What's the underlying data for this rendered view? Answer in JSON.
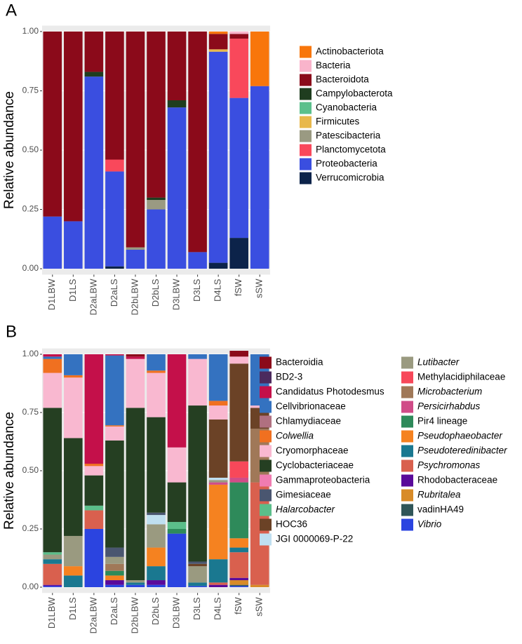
{
  "chart_data": [
    {
      "type": "stacked_bar",
      "panel_label": "A",
      "y_label": "Relative abundance",
      "categories": [
        "D1LBW",
        "D1LS",
        "D2aLBW",
        "D2aLS",
        "D2bLBW",
        "D2bLS",
        "D3LBW",
        "D3LS",
        "D4LS",
        "fSW",
        "sSW"
      ],
      "ylim": [
        -0.025,
        1.025
      ],
      "yticks": [
        {
          "value": 0,
          "label": "0.00"
        },
        {
          "value": 0.25,
          "label": "0.25"
        },
        {
          "value": 0.5,
          "label": "0.50"
        },
        {
          "value": 0.75,
          "label": "0.75"
        },
        {
          "value": 1,
          "label": "1.00"
        }
      ],
      "grid": true,
      "series": [
        {
          "name": "Actinobacteriota",
          "color": "#f8760b",
          "values": [
            0,
            0,
            0,
            0,
            0,
            0,
            0,
            0,
            0.01,
            0,
            0.23
          ]
        },
        {
          "name": "Bacteria",
          "color": "#f9b4cb",
          "values": [
            0,
            0,
            0,
            0,
            0,
            0,
            0,
            0,
            0,
            0.01,
            0
          ]
        },
        {
          "name": "Bacteroidota",
          "color": "#8b0a1a",
          "values": [
            0.78,
            0.8,
            0.17,
            0.54,
            0.91,
            0.7,
            0.29,
            0.93,
            0.065,
            0.02,
            0
          ]
        },
        {
          "name": "Campylobacterota",
          "color": "#1f3d1f",
          "values": [
            0,
            0,
            0.02,
            0,
            0,
            0.01,
            0.03,
            0,
            0,
            0,
            0
          ]
        },
        {
          "name": "Cyanobacteria",
          "color": "#5bc08c",
          "values": [
            0,
            0,
            0,
            0,
            0,
            0,
            0,
            0,
            0,
            0,
            0
          ]
        },
        {
          "name": "Firmicutes",
          "color": "#e8b84a",
          "values": [
            0,
            0,
            0,
            0,
            0,
            0,
            0,
            0,
            0.01,
            0,
            0
          ]
        },
        {
          "name": "Patescibacteria",
          "color": "#9a9a82",
          "values": [
            0,
            0,
            0,
            0,
            0.01,
            0.04,
            0,
            0,
            0,
            0,
            0
          ]
        },
        {
          "name": "Planctomycetota",
          "color": "#f9485b",
          "values": [
            0,
            0,
            0,
            0.05,
            0,
            0,
            0,
            0,
            0,
            0.25,
            0
          ]
        },
        {
          "name": "Proteobacteria",
          "color": "#3a4ee0",
          "values": [
            0.22,
            0.2,
            0.81,
            0.4,
            0.08,
            0.25,
            0.68,
            0.07,
            0.89,
            0.59,
            0.77
          ]
        },
        {
          "name": "Verrucomicrobia",
          "color": "#0c234a",
          "values": [
            0,
            0,
            0,
            0.01,
            0,
            0,
            0,
            0,
            0.025,
            0.13,
            0
          ]
        }
      ]
    },
    {
      "type": "stacked_bar",
      "panel_label": "B",
      "y_label": "Relative abundance",
      "categories": [
        "D1LBW",
        "D1LS",
        "D2aLBW",
        "D2aLS",
        "D2bLBW",
        "D2bLS",
        "D3LBW",
        "D3LS",
        "D4LS",
        "fSW",
        "sSW"
      ],
      "ylim": [
        -0.025,
        1.025
      ],
      "yticks": [
        {
          "value": 0,
          "label": "0.00"
        },
        {
          "value": 0.25,
          "label": "0.25"
        },
        {
          "value": 0.5,
          "label": "0.50"
        },
        {
          "value": 0.75,
          "label": "0.75"
        },
        {
          "value": 1,
          "label": "1.00"
        }
      ],
      "grid": true,
      "series": [
        {
          "name": "Bacteroidia",
          "color": "#8b0a1a",
          "values": [
            0,
            0,
            0,
            0,
            0.01,
            0,
            0,
            0,
            0,
            0.025,
            0
          ]
        },
        {
          "name": "BD2-3",
          "color": "#4b2a5e",
          "values": [
            0,
            0,
            0,
            0,
            0,
            0,
            0,
            0,
            0,
            0,
            0
          ]
        },
        {
          "name": "Candidatus Photodesmus",
          "color": "#c4104a",
          "values": [
            0.01,
            0,
            0.47,
            0.005,
            0.01,
            0,
            0.4,
            0,
            0,
            0,
            0
          ]
        },
        {
          "name": "Cellvibrionaceae",
          "color": "#3472c0",
          "values": [
            0.01,
            0.09,
            0,
            0.3,
            0,
            0.07,
            0,
            0.02,
            0.2,
            0,
            0.22
          ]
        },
        {
          "name": "Chlamydiaceae",
          "color": "#b07080",
          "values": [
            0,
            0,
            0,
            0,
            0,
            0,
            0,
            0,
            0,
            0,
            0
          ]
        },
        {
          "name": "Colwellia",
          "color": "#f07020",
          "italic": true,
          "values": [
            0.06,
            0.01,
            0.01,
            0.005,
            0,
            0.01,
            0,
            0,
            0.02,
            0,
            0
          ]
        },
        {
          "name": "Cryomorphaceae",
          "color": "#f9b8d0",
          "values": [
            0.15,
            0.26,
            0.04,
            0.06,
            0.21,
            0.19,
            0.15,
            0.2,
            0.06,
            0.03,
            0.01
          ]
        },
        {
          "name": "Cyclobacteriaceae",
          "color": "#253f22",
          "values": [
            0.62,
            0.42,
            0.13,
            0.46,
            0.74,
            0.41,
            0.17,
            0.67,
            0,
            0,
            0
          ]
        },
        {
          "name": "Gammaproteobacteria",
          "color": "#f07cb0",
          "values": [
            0,
            0,
            0,
            0,
            0,
            0,
            0,
            0,
            0,
            0,
            0
          ]
        },
        {
          "name": "Gimesiaceae",
          "color": "#4a5670",
          "values": [
            0,
            0,
            0,
            0.04,
            0,
            0.01,
            0,
            0.01,
            0,
            0,
            0
          ]
        },
        {
          "name": "Halarcobacter",
          "color": "#5bbe8a",
          "italic": true,
          "values": [
            0.01,
            0,
            0.02,
            0,
            0,
            0,
            0.03,
            0,
            0,
            0,
            0
          ]
        },
        {
          "name": "HOC36",
          "color": "#6b4226",
          "values": [
            0,
            0,
            0,
            0,
            0,
            0,
            0,
            0.01,
            0.25,
            0.42,
            0.09
          ]
        },
        {
          "name": "JGI 0000069-P-22",
          "color": "#bfdff0",
          "values": [
            0,
            0,
            0,
            0,
            0,
            0.04,
            0,
            0,
            0.01,
            0,
            0
          ]
        },
        {
          "name": "Lutibacter",
          "color": "#9a9a80",
          "italic": true,
          "values": [
            0.02,
            0.13,
            0,
            0.03,
            0.01,
            0.1,
            0,
            0.07,
            0.01,
            0,
            0
          ]
        },
        {
          "name": "Methylacidiphilaceae",
          "color": "#f7485a",
          "values": [
            0,
            0,
            0,
            0,
            0,
            0,
            0,
            0,
            0,
            0.07,
            0
          ]
        },
        {
          "name": "Microbacterium",
          "color": "#a07858",
          "italic": true,
          "values": [
            0,
            0,
            0,
            0.03,
            0,
            0,
            0,
            0,
            0,
            0,
            0.23
          ]
        },
        {
          "name": "Persicirhabdus",
          "color": "#d04c88",
          "italic": true,
          "values": [
            0,
            0,
            0,
            0,
            0,
            0,
            0,
            0,
            0.01,
            0.02,
            0
          ]
        },
        {
          "name": "Pir4 lineage",
          "color": "#2e8a5a",
          "values": [
            0,
            0,
            0,
            0.02,
            0,
            0,
            0.02,
            0,
            0,
            0.24,
            0
          ]
        },
        {
          "name": "Pseudophaeobacter",
          "color": "#f58220",
          "italic": true,
          "values": [
            0,
            0.04,
            0,
            0.02,
            0,
            0.08,
            0,
            0,
            0.32,
            0.04,
            0
          ]
        },
        {
          "name": "Pseudoteredinibacter",
          "color": "#1a7890",
          "italic": true,
          "values": [
            0.02,
            0.05,
            0,
            0,
            0.01,
            0.06,
            0,
            0.015,
            0.1,
            0.02,
            0
          ]
        },
        {
          "name": "Psychromonas",
          "color": "#d9604e",
          "italic": true,
          "values": [
            0.09,
            0,
            0.08,
            0,
            0,
            0,
            0,
            0,
            0.01,
            0.11,
            0.44
          ]
        },
        {
          "name": "Rhodobacteraceae",
          "color": "#5a0a9a",
          "values": [
            0.005,
            0,
            0,
            0.02,
            0,
            0.02,
            0,
            0,
            0.01,
            0.01,
            0
          ]
        },
        {
          "name": "Rubritalea",
          "color": "#d88b28",
          "italic": true,
          "values": [
            0,
            0,
            0,
            0,
            0,
            0,
            0,
            0,
            0,
            0.02,
            0.01
          ]
        },
        {
          "name": "vadinHA49",
          "color": "#2f5558",
          "values": [
            0,
            0,
            0,
            0,
            0,
            0,
            0,
            0,
            0,
            0.005,
            0
          ]
        },
        {
          "name": "Vibrio",
          "color": "#2b44e0",
          "italic": true,
          "values": [
            0.005,
            0,
            0.25,
            0.01,
            0.01,
            0.01,
            0.23,
            0.005,
            0,
            0.005,
            0
          ]
        }
      ]
    }
  ]
}
